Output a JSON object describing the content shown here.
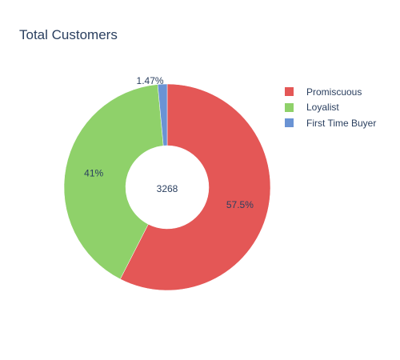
{
  "chart_data": {
    "type": "pie",
    "title": "Total Customers",
    "hole_label": "3268",
    "legend_position": "top-right",
    "slices": [
      {
        "label": "Promiscuous",
        "value": 57.5,
        "text": "57.5%",
        "color": "#e45756"
      },
      {
        "label": "Loyalist",
        "value": 41,
        "text": "41%",
        "color": "#8fd16a"
      },
      {
        "label": "First Time Buyer",
        "value": 1.47,
        "text": "1.47%",
        "color": "#6a93d4"
      }
    ]
  }
}
